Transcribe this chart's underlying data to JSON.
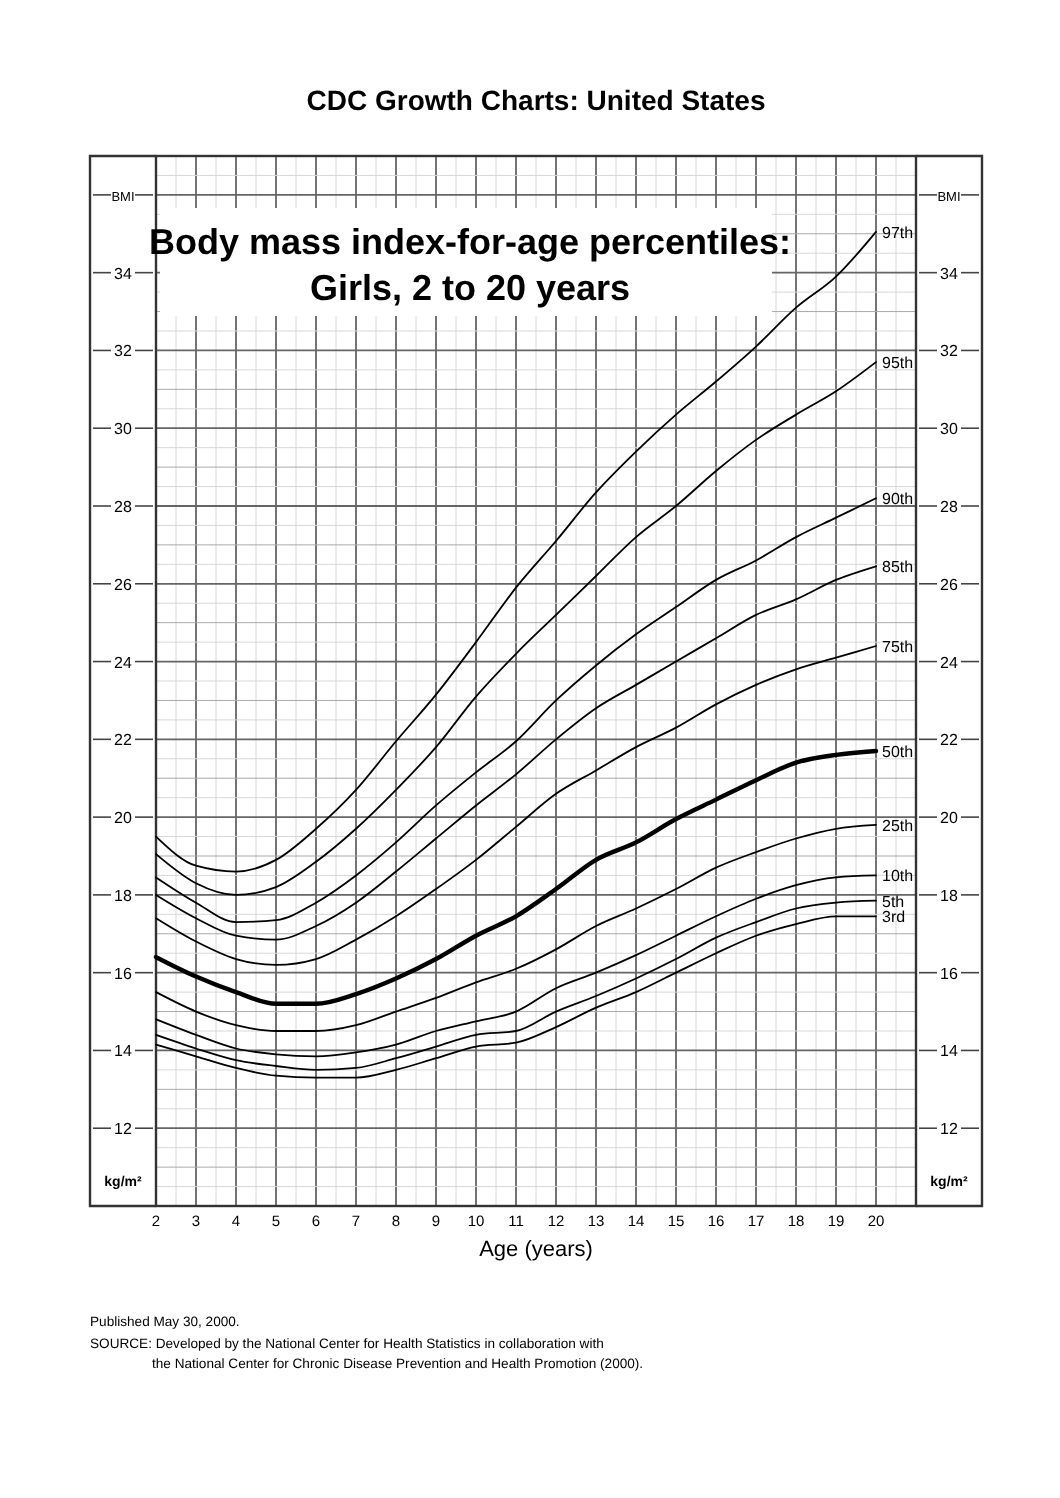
{
  "chart_data": {
    "type": "line",
    "title": "CDC Growth Charts: United States",
    "subtitle": "Body mass index-for-age percentiles:\nGirls, 2 to 20 years",
    "xlabel": "Age (years)",
    "ylabel": "kg/m²",
    "y2label": "kg/m²",
    "annotations": [
      "Published May 30, 2000.",
      "SOURCE: Developed by the National Center for Health Statistics in collaboration with the National Center for Chronic Disease Prevention and Health Promotion (2000)."
    ],
    "x": [
      2,
      3,
      4,
      5,
      6,
      7,
      8,
      9,
      10,
      11,
      12,
      13,
      14,
      15,
      16,
      17,
      18,
      19,
      20
    ],
    "xlim": [
      2,
      21
    ],
    "xticks": [
      2,
      3,
      4,
      5,
      6,
      7,
      8,
      9,
      10,
      11,
      12,
      13,
      14,
      15,
      16,
      17,
      18,
      19,
      20
    ],
    "ylim": [
      10,
      37
    ],
    "yticks": [
      12,
      14,
      16,
      18,
      20,
      22,
      24,
      26,
      28,
      30,
      32,
      34,
      {
        "value": 36,
        "label": "BMI"
      }
    ],
    "y2lim": [
      10,
      37
    ],
    "y2ticks": [
      12,
      14,
      16,
      18,
      20,
      22,
      24,
      26,
      28,
      30,
      32,
      34,
      {
        "value": 36,
        "label": "BMI"
      }
    ],
    "grid": true,
    "legend": false,
    "marker": "none",
    "line_style": "solid",
    "series": [
      {
        "name": "97th",
        "color": "#000000",
        "values": [
          19.5,
          18.75,
          18.6,
          18.9,
          19.7,
          20.7,
          21.95,
          23.15,
          24.5,
          25.9,
          27.1,
          28.35,
          29.4,
          30.35,
          31.2,
          32.1,
          33.1,
          33.9,
          35.05
        ]
      },
      {
        "name": "95th",
        "color": "#000000",
        "values": [
          19.05,
          18.3,
          18.0,
          18.2,
          18.85,
          19.7,
          20.7,
          21.8,
          23.1,
          24.2,
          25.2,
          26.2,
          27.2,
          28.0,
          28.9,
          29.7,
          30.35,
          30.95,
          31.7
        ]
      },
      {
        "name": "90th",
        "color": "#000000",
        "values": [
          18.45,
          17.8,
          17.3,
          17.35,
          17.8,
          18.5,
          19.35,
          20.3,
          21.15,
          21.95,
          23.0,
          23.9,
          24.7,
          25.4,
          26.1,
          26.6,
          27.2,
          27.7,
          28.2
        ]
      },
      {
        "name": "85th",
        "color": "#000000",
        "values": [
          18.0,
          17.4,
          16.95,
          16.85,
          17.2,
          17.8,
          18.6,
          19.45,
          20.3,
          21.1,
          22.0,
          22.8,
          23.4,
          24.0,
          24.6,
          25.2,
          25.6,
          26.1,
          26.45
        ]
      },
      {
        "name": "75th",
        "color": "#000000",
        "values": [
          17.4,
          16.8,
          16.35,
          16.2,
          16.35,
          16.85,
          17.45,
          18.15,
          18.9,
          19.75,
          20.6,
          21.2,
          21.8,
          22.3,
          22.9,
          23.4,
          23.8,
          24.1,
          24.4
        ]
      },
      {
        "name": "50th",
        "color": "#000000",
        "values": [
          16.4,
          15.9,
          15.5,
          15.2,
          15.2,
          15.45,
          15.85,
          16.35,
          16.95,
          17.45,
          18.15,
          18.9,
          19.35,
          19.95,
          20.45,
          20.95,
          21.4,
          21.6,
          21.7
        ]
      },
      {
        "name": "25th",
        "color": "#000000",
        "values": [
          15.5,
          15.0,
          14.65,
          14.5,
          14.5,
          14.65,
          15.0,
          15.35,
          15.75,
          16.1,
          16.6,
          17.2,
          17.65,
          18.15,
          18.7,
          19.1,
          19.45,
          19.7,
          19.8
        ]
      },
      {
        "name": "10th",
        "color": "#000000",
        "values": [
          14.8,
          14.4,
          14.05,
          13.9,
          13.85,
          13.95,
          14.15,
          14.5,
          14.75,
          15.0,
          15.6,
          16.0,
          16.45,
          16.95,
          17.45,
          17.9,
          18.25,
          18.45,
          18.5
        ]
      },
      {
        "name": "5th",
        "color": "#000000",
        "values": [
          14.4,
          14.05,
          13.75,
          13.6,
          13.5,
          13.55,
          13.8,
          14.1,
          14.4,
          14.5,
          15.0,
          15.4,
          15.85,
          16.35,
          16.9,
          17.3,
          17.65,
          17.8,
          17.85
        ]
      },
      {
        "name": "3rd",
        "color": "#000000",
        "values": [
          14.15,
          13.85,
          13.55,
          13.35,
          13.3,
          13.3,
          13.5,
          13.8,
          14.1,
          14.2,
          14.6,
          15.1,
          15.5,
          16.0,
          16.5,
          16.95,
          17.25,
          17.45,
          17.45
        ]
      }
    ]
  }
}
